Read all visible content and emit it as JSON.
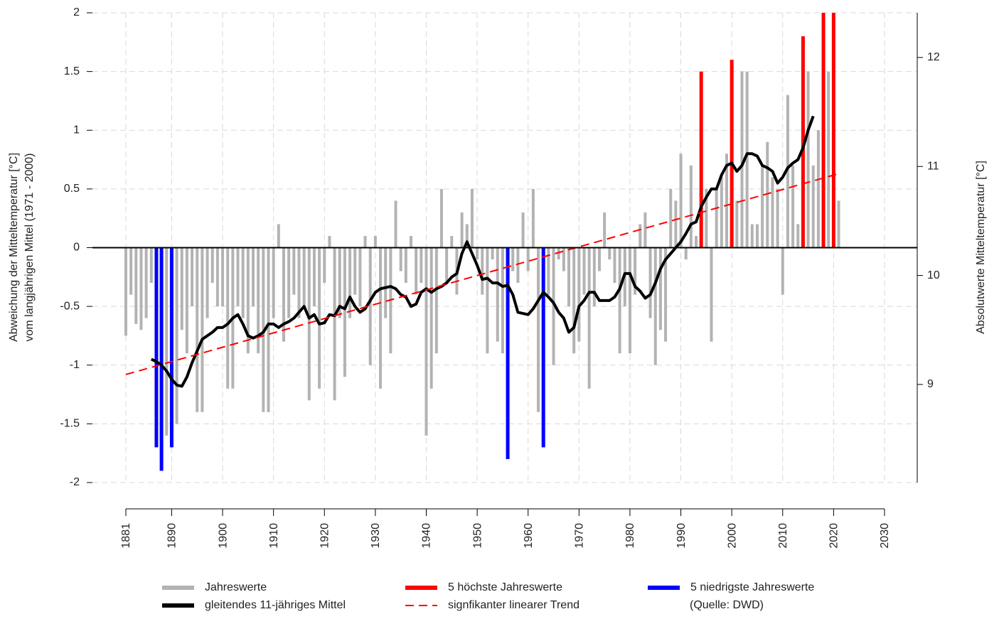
{
  "chart_data": {
    "type": "bar",
    "ylabel": [
      "Abweichung der Mitteltemperatur [°C]",
      "vom langjährigen Mittel (1971 - 2000)"
    ],
    "y2label": "Absolutwerte Mitteltemperatur [°C]",
    "source": "(Quelle: DWD)",
    "xlim": [
      1881,
      2030
    ],
    "xticks": [
      1881,
      1890,
      1900,
      1910,
      1920,
      1930,
      1940,
      1950,
      1960,
      1970,
      1980,
      1990,
      2000,
      2010,
      2020,
      2030
    ],
    "ylim": [
      -2,
      2
    ],
    "yticks": [
      -2,
      -1.5,
      -1,
      -0.5,
      0,
      0.5,
      1,
      1.5,
      2
    ],
    "y2lim": [
      8.1,
      12.41
    ],
    "y2ticks": [
      9,
      10,
      11,
      12
    ],
    "grid": true,
    "x": [
      1881,
      1882,
      1883,
      1884,
      1885,
      1886,
      1887,
      1888,
      1889,
      1890,
      1891,
      1892,
      1893,
      1894,
      1895,
      1896,
      1897,
      1898,
      1899,
      1900,
      1901,
      1902,
      1903,
      1904,
      1905,
      1906,
      1907,
      1908,
      1909,
      1910,
      1911,
      1912,
      1913,
      1914,
      1915,
      1916,
      1917,
      1918,
      1919,
      1920,
      1921,
      1922,
      1923,
      1924,
      1925,
      1926,
      1927,
      1928,
      1929,
      1930,
      1931,
      1932,
      1933,
      1934,
      1935,
      1936,
      1937,
      1938,
      1939,
      1940,
      1941,
      1942,
      1943,
      1944,
      1945,
      1946,
      1947,
      1948,
      1949,
      1950,
      1951,
      1952,
      1953,
      1954,
      1955,
      1956,
      1957,
      1958,
      1959,
      1960,
      1961,
      1962,
      1963,
      1964,
      1965,
      1966,
      1967,
      1968,
      1969,
      1970,
      1971,
      1972,
      1973,
      1974,
      1975,
      1976,
      1977,
      1978,
      1979,
      1980,
      1981,
      1982,
      1983,
      1984,
      1985,
      1986,
      1987,
      1988,
      1989,
      1990,
      1991,
      1992,
      1993,
      1994,
      1995,
      1996,
      1997,
      1998,
      1999,
      2000,
      2001,
      2002,
      2003,
      2004,
      2005,
      2006,
      2007,
      2008,
      2009,
      2010,
      2011,
      2012,
      2013,
      2014,
      2015,
      2016,
      2017,
      2018,
      2019,
      2020,
      2021
    ],
    "series": [
      {
        "name": "Jahreswerte",
        "kind": "bar",
        "color": "#b3b3b3",
        "values": [
          -0.75,
          -0.4,
          -0.65,
          -0.7,
          -0.6,
          -0.3,
          null,
          null,
          -1.6,
          null,
          -1.5,
          -0.7,
          -0.9,
          -0.5,
          -1.4,
          -1.4,
          -0.6,
          -0.3,
          -0.5,
          -0.5,
          -1.2,
          -1.2,
          -0.5,
          -0.6,
          -0.9,
          -0.5,
          -0.9,
          -1.4,
          -1.4,
          -0.6,
          0.2,
          -0.8,
          -0.6,
          -0.4,
          -0.6,
          -0.5,
          -1.3,
          -0.5,
          -1.2,
          -0.3,
          0.1,
          -1.3,
          -0.6,
          -1.1,
          -0.6,
          -0.4,
          -0.5,
          0.1,
          -1.0,
          0.1,
          -1.2,
          -0.6,
          -0.9,
          0.4,
          -0.2,
          -0.3,
          0.1,
          -0.4,
          -0.3,
          -1.6,
          -1.2,
          -0.9,
          0.5,
          -0.3,
          0.1,
          -0.4,
          0.3,
          0.2,
          0.5,
          -0.1,
          -0.4,
          -0.9,
          -0.1,
          -0.8,
          -0.9,
          null,
          -0.2,
          -0.3,
          0.3,
          -0.2,
          0.5,
          -1.4,
          null,
          -0.4,
          -1.0,
          -0.1,
          -0.2,
          -0.5,
          -0.9,
          -0.8,
          -0.4,
          -1.2,
          -0.5,
          -0.2,
          0.3,
          -0.1,
          -0.3,
          -0.9,
          -0.5,
          -0.9,
          -0.4,
          0.2,
          0.3,
          -0.6,
          -1.0,
          -0.7,
          -0.8,
          0.5,
          0.4,
          0.8,
          -0.1,
          0.7,
          0.1,
          null,
          0.5,
          -0.8,
          0.5,
          0.6,
          0.8,
          null,
          0.4,
          1.5,
          1.5,
          0.2,
          0.2,
          0.7,
          0.9,
          0.6,
          0.5,
          -0.4,
          1.3,
          0.7,
          0.2,
          null,
          1.5,
          0.7,
          1.0,
          null,
          1.5,
          null,
          0.4
        ]
      },
      {
        "name": "5 höchste Jahreswerte",
        "kind": "bar",
        "color": "#ff0000",
        "x": [
          1994,
          2000,
          2014,
          2018,
          2020
        ],
        "values": [
          1.5,
          1.6,
          1.8,
          2.3,
          2.2
        ]
      },
      {
        "name": "5 niedrigste Jahreswerte",
        "kind": "bar",
        "color": "#0000ff",
        "x": [
          1887,
          1888,
          1890,
          1956,
          1963
        ],
        "values": [
          -1.7,
          -1.9,
          -1.7,
          -1.8,
          -1.7
        ]
      },
      {
        "name": "gleitendes 11-jähriges Mittel",
        "kind": "line",
        "color": "#000000",
        "x": [
          1886,
          1887,
          1888,
          1889,
          1890,
          1891,
          1892,
          1893,
          1894,
          1895,
          1896,
          1897,
          1898,
          1899,
          1900,
          1901,
          1902,
          1903,
          1904,
          1905,
          1906,
          1907,
          1908,
          1909,
          1910,
          1911,
          1912,
          1913,
          1914,
          1915,
          1916,
          1917,
          1918,
          1919,
          1920,
          1921,
          1922,
          1923,
          1924,
          1925,
          1926,
          1927,
          1928,
          1929,
          1930,
          1931,
          1932,
          1933,
          1934,
          1935,
          1936,
          1937,
          1938,
          1939,
          1940,
          1941,
          1942,
          1943,
          1944,
          1945,
          1946,
          1947,
          1948,
          1949,
          1950,
          1951,
          1952,
          1953,
          1954,
          1955,
          1956,
          1957,
          1958,
          1959,
          1960,
          1961,
          1962,
          1963,
          1964,
          1965,
          1966,
          1967,
          1968,
          1969,
          1970,
          1971,
          1972,
          1973,
          1974,
          1975,
          1976,
          1977,
          1978,
          1979,
          1980,
          1981,
          1982,
          1983,
          1984,
          1985,
          1986,
          1987,
          1988,
          1989,
          1990,
          1991,
          1992,
          1993,
          1994,
          1995,
          1996,
          1997,
          1998,
          1999,
          2000,
          2001,
          2002,
          2003,
          2004,
          2005,
          2006,
          2007,
          2008,
          2009,
          2010,
          2011,
          2012,
          2013,
          2014,
          2015,
          2016
        ],
        "values": [
          -0.95,
          -0.97,
          -1.0,
          -1.05,
          -1.12,
          -1.17,
          -1.18,
          -1.1,
          -0.98,
          -0.88,
          -0.78,
          -0.75,
          -0.72,
          -0.68,
          -0.68,
          -0.65,
          -0.6,
          -0.57,
          -0.65,
          -0.75,
          -0.77,
          -0.75,
          -0.72,
          -0.65,
          -0.65,
          -0.68,
          -0.65,
          -0.63,
          -0.6,
          -0.55,
          -0.5,
          -0.6,
          -0.57,
          -0.65,
          -0.64,
          -0.57,
          -0.58,
          -0.5,
          -0.52,
          -0.42,
          -0.5,
          -0.55,
          -0.52,
          -0.45,
          -0.38,
          -0.35,
          -0.34,
          -0.33,
          -0.35,
          -0.4,
          -0.42,
          -0.5,
          -0.48,
          -0.38,
          -0.35,
          -0.38,
          -0.35,
          -0.33,
          -0.3,
          -0.25,
          -0.22,
          -0.05,
          0.05,
          -0.05,
          -0.15,
          -0.27,
          -0.26,
          -0.3,
          -0.3,
          -0.33,
          -0.32,
          -0.4,
          -0.55,
          -0.56,
          -0.57,
          -0.52,
          -0.45,
          -0.38,
          -0.42,
          -0.47,
          -0.55,
          -0.6,
          -0.72,
          -0.68,
          -0.5,
          -0.45,
          -0.38,
          -0.38,
          -0.45,
          -0.45,
          -0.45,
          -0.42,
          -0.35,
          -0.22,
          -0.22,
          -0.33,
          -0.37,
          -0.43,
          -0.4,
          -0.3,
          -0.18,
          -0.1,
          -0.05,
          0.0,
          0.05,
          0.12,
          0.2,
          0.22,
          0.35,
          0.43,
          0.5,
          0.5,
          0.62,
          0.7,
          0.72,
          0.65,
          0.7,
          0.8,
          0.8,
          0.78,
          0.7,
          0.68,
          0.65,
          0.55,
          0.6,
          0.68,
          0.72,
          0.75,
          0.85,
          1.0,
          1.12
        ]
      },
      {
        "name": "signfikanter linearer Trend",
        "kind": "dashed",
        "color": "#ff0000",
        "x": [
          1881,
          2021
        ],
        "values": [
          -1.08,
          0.63
        ]
      }
    ]
  }
}
